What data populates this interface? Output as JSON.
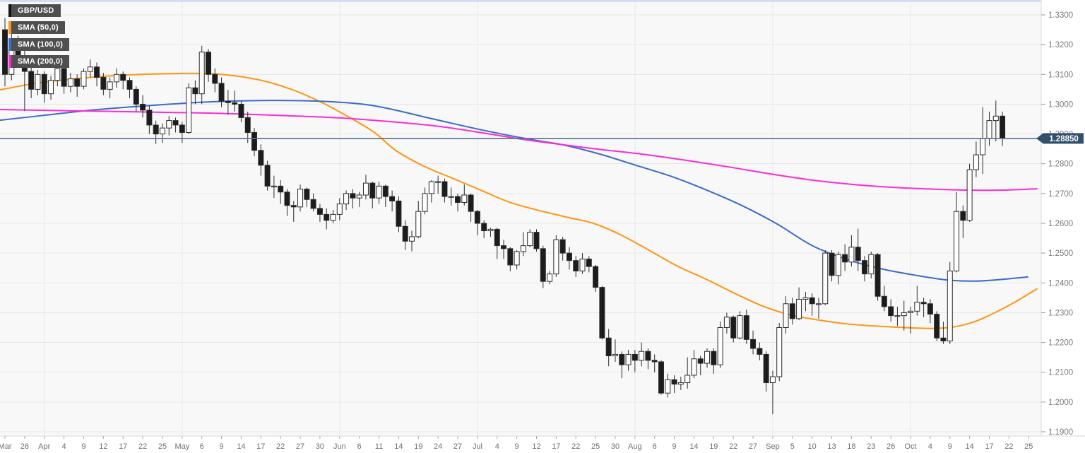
{
  "legend": {
    "symbol": "GBP/USD",
    "items": [
      {
        "label": "SMA (50,0)",
        "color": "#ff9514"
      },
      {
        "label": "SMA (100,0)",
        "color": "#3a6cc8"
      },
      {
        "label": "SMA (200,0)",
        "color": "#fb2bd3"
      }
    ]
  },
  "price_tag": {
    "value": "1.28850",
    "bg": "#31506e",
    "line_color": "#54708e"
  },
  "chart_data": {
    "type": "candlestick",
    "title": "GBP/USD daily candlestick chart with SMA(50), SMA(100), SMA(200) overlays",
    "last_price": 1.2885,
    "y_axis": {
      "min": 1.19,
      "max": 1.33,
      "tick_step": 0.01,
      "labels": [
        "1.3300",
        "1.3200",
        "1.3100",
        "1.3000",
        "1.2900",
        "1.2800",
        "1.2700",
        "1.2600",
        "1.2500",
        "1.2400",
        "1.2300",
        "1.2200",
        "1.2100",
        "1.2000",
        "1.1900"
      ]
    },
    "x_axis": {
      "tick_labels": [
        "Mar",
        "26",
        "Apr",
        "4",
        "9",
        "12",
        "17",
        "22",
        "25",
        "May",
        "6",
        "9",
        "14",
        "17",
        "22",
        "27",
        "30",
        "Jun",
        "6",
        "11",
        "14",
        "19",
        "24",
        "27",
        "Jul",
        "4",
        "9",
        "12",
        "17",
        "22",
        "25",
        "30",
        "Aug",
        "6",
        "9",
        "14",
        "19",
        "22",
        "27",
        "Sep",
        "5",
        "10",
        "13",
        "18",
        "23",
        "26",
        "Oct",
        "4",
        "9",
        "14",
        "17",
        "22",
        "25"
      ],
      "month_tick_indices": [
        2,
        9,
        17,
        24,
        32,
        39,
        46
      ],
      "candles_per_tick": 3
    },
    "candles": [
      [
        1.325,
        1.329,
        1.306,
        1.31
      ],
      [
        1.31,
        1.3255,
        1.308,
        1.321
      ],
      [
        1.321,
        1.323,
        1.313,
        1.316
      ],
      [
        1.316,
        1.3185,
        1.2977,
        1.311
      ],
      [
        1.311,
        1.313,
        1.302,
        1.305
      ],
      [
        1.305,
        1.3115,
        1.303,
        1.31
      ],
      [
        1.31,
        1.311,
        1.3005,
        1.3035
      ],
      [
        1.3035,
        1.3095,
        1.3015,
        1.308
      ],
      [
        1.308,
        1.316,
        1.306,
        1.312
      ],
      [
        1.312,
        1.3135,
        1.3035,
        1.306
      ],
      [
        1.306,
        1.3105,
        1.304,
        1.3085
      ],
      [
        1.3085,
        1.31,
        1.3025,
        1.306
      ],
      [
        1.306,
        1.312,
        1.305,
        1.311
      ],
      [
        1.311,
        1.315,
        1.309,
        1.3125
      ],
      [
        1.3125,
        1.314,
        1.306,
        1.309
      ],
      [
        1.309,
        1.3105,
        1.303,
        1.305
      ],
      [
        1.305,
        1.309,
        1.302,
        1.3075
      ],
      [
        1.3075,
        1.312,
        1.3055,
        1.31
      ],
      [
        1.31,
        1.311,
        1.305,
        1.308
      ],
      [
        1.308,
        1.309,
        1.302,
        1.305
      ],
      [
        1.305,
        1.306,
        1.2975,
        1.3
      ],
      [
        1.3,
        1.303,
        1.2955,
        1.298
      ],
      [
        1.298,
        1.2995,
        1.29,
        1.293
      ],
      [
        1.293,
        1.2945,
        1.2866,
        1.29
      ],
      [
        1.29,
        1.2935,
        1.287,
        1.292
      ],
      [
        1.292,
        1.296,
        1.2895,
        1.2945
      ],
      [
        1.2945,
        1.2955,
        1.2905,
        1.293
      ],
      [
        1.293,
        1.294,
        1.287,
        1.2905
      ],
      [
        1.2905,
        1.307,
        1.29,
        1.3055
      ],
      [
        1.3055,
        1.308,
        1.3,
        1.3035
      ],
      [
        1.3035,
        1.3196,
        1.3,
        1.3175
      ],
      [
        1.3175,
        1.3185,
        1.3075,
        1.31
      ],
      [
        1.31,
        1.312,
        1.304,
        1.307
      ],
      [
        1.307,
        1.309,
        1.299,
        1.301
      ],
      [
        1.301,
        1.3048,
        1.2965,
        1.3005
      ],
      [
        1.3005,
        1.3045,
        1.2975,
        1.3
      ],
      [
        1.3,
        1.301,
        1.294,
        1.2955
      ],
      [
        1.2955,
        1.2975,
        1.287,
        1.2905
      ],
      [
        1.2905,
        1.292,
        1.2825,
        1.2845
      ],
      [
        1.2845,
        1.2865,
        1.276,
        1.2795
      ],
      [
        1.2795,
        1.281,
        1.271,
        1.2725
      ],
      [
        1.2725,
        1.276,
        1.2685,
        1.2725
      ],
      [
        1.2725,
        1.2745,
        1.2665,
        1.2705
      ],
      [
        1.2705,
        1.2715,
        1.2625,
        1.266
      ],
      [
        1.266,
        1.2675,
        1.2605,
        1.2655
      ],
      [
        1.2655,
        1.273,
        1.264,
        1.2715
      ],
      [
        1.2715,
        1.272,
        1.2655,
        1.268
      ],
      [
        1.268,
        1.27,
        1.264,
        1.265
      ],
      [
        1.265,
        1.2665,
        1.2605,
        1.263
      ],
      [
        1.263,
        1.265,
        1.258,
        1.261
      ],
      [
        1.261,
        1.2645,
        1.26,
        1.263
      ],
      [
        1.263,
        1.2685,
        1.261,
        1.2665
      ],
      [
        1.2665,
        1.271,
        1.2645,
        1.27
      ],
      [
        1.27,
        1.2715,
        1.265,
        1.2685
      ],
      [
        1.2685,
        1.2705,
        1.2655,
        1.2695
      ],
      [
        1.2695,
        1.2763,
        1.268,
        1.2735
      ],
      [
        1.2735,
        1.274,
        1.265,
        1.2685
      ],
      [
        1.2685,
        1.274,
        1.2665,
        1.2725
      ],
      [
        1.2725,
        1.273,
        1.2655,
        1.269
      ],
      [
        1.269,
        1.271,
        1.264,
        1.2675
      ],
      [
        1.2675,
        1.269,
        1.257,
        1.259
      ],
      [
        1.259,
        1.261,
        1.251,
        1.254
      ],
      [
        1.254,
        1.2575,
        1.2506,
        1.2555
      ],
      [
        1.2555,
        1.2675,
        1.255,
        1.264
      ],
      [
        1.264,
        1.272,
        1.263,
        1.27
      ],
      [
        1.27,
        1.2745,
        1.267,
        1.274
      ],
      [
        1.274,
        1.276,
        1.27,
        1.274
      ],
      [
        1.274,
        1.275,
        1.267,
        1.269
      ],
      [
        1.269,
        1.272,
        1.266,
        1.269
      ],
      [
        1.269,
        1.27,
        1.264,
        1.267
      ],
      [
        1.267,
        1.273,
        1.266,
        1.2695
      ],
      [
        1.2695,
        1.27,
        1.2605,
        1.264
      ],
      [
        1.264,
        1.2645,
        1.256,
        1.26
      ],
      [
        1.26,
        1.261,
        1.255,
        1.2575
      ],
      [
        1.2575,
        1.2585,
        1.2555,
        1.258
      ],
      [
        1.258,
        1.2585,
        1.248,
        1.2525
      ],
      [
        1.2525,
        1.2545,
        1.248,
        1.2515
      ],
      [
        1.2515,
        1.252,
        1.2439,
        1.246
      ],
      [
        1.246,
        1.251,
        1.2445,
        1.2505
      ],
      [
        1.2505,
        1.257,
        1.249,
        1.2525
      ],
      [
        1.2525,
        1.258,
        1.252,
        1.257
      ],
      [
        1.257,
        1.258,
        1.2505,
        1.2515
      ],
      [
        1.2515,
        1.2525,
        1.2382,
        1.2405
      ],
      [
        1.2405,
        1.244,
        1.2395,
        1.243
      ],
      [
        1.243,
        1.256,
        1.242,
        1.2545
      ],
      [
        1.2545,
        1.2555,
        1.2475,
        1.25
      ],
      [
        1.25,
        1.252,
        1.2445,
        1.2475
      ],
      [
        1.2475,
        1.249,
        1.242,
        1.244
      ],
      [
        1.244,
        1.25,
        1.243,
        1.248
      ],
      [
        1.248,
        1.249,
        1.2435,
        1.2455
      ],
      [
        1.2455,
        1.246,
        1.237,
        1.2385
      ],
      [
        1.2385,
        1.239,
        1.221,
        1.2215
      ],
      [
        1.2215,
        1.2245,
        1.212,
        1.2155
      ],
      [
        1.2155,
        1.221,
        1.2135,
        1.216
      ],
      [
        1.216,
        1.217,
        1.208,
        1.2125
      ],
      [
        1.2125,
        1.2175,
        1.2105,
        1.216
      ],
      [
        1.216,
        1.2175,
        1.21,
        1.214
      ],
      [
        1.214,
        1.22,
        1.212,
        1.217
      ],
      [
        1.217,
        1.218,
        1.211,
        1.214
      ],
      [
        1.214,
        1.216,
        1.21,
        1.2135
      ],
      [
        1.2135,
        1.214,
        1.2025,
        1.203
      ],
      [
        1.203,
        1.2095,
        1.2015,
        1.2075
      ],
      [
        1.2075,
        1.209,
        1.203,
        1.206
      ],
      [
        1.206,
        1.2085,
        1.204,
        1.2065
      ],
      [
        1.2065,
        1.215,
        1.2045,
        1.209
      ],
      [
        1.209,
        1.2175,
        1.208,
        1.2145
      ],
      [
        1.2145,
        1.2155,
        1.209,
        1.213
      ],
      [
        1.213,
        1.218,
        1.2115,
        1.217
      ],
      [
        1.217,
        1.218,
        1.2095,
        1.2125
      ],
      [
        1.2125,
        1.227,
        1.2115,
        1.225
      ],
      [
        1.225,
        1.23,
        1.223,
        1.2285
      ],
      [
        1.2285,
        1.229,
        1.22,
        1.2215
      ],
      [
        1.2215,
        1.2305,
        1.221,
        1.229
      ],
      [
        1.229,
        1.231,
        1.2195,
        1.221
      ],
      [
        1.221,
        1.224,
        1.216,
        1.218
      ],
      [
        1.218,
        1.22,
        1.214,
        1.216
      ],
      [
        1.216,
        1.217,
        1.2035,
        1.2065
      ],
      [
        1.2065,
        1.2105,
        1.1959,
        1.2085
      ],
      [
        1.2085,
        1.2265,
        1.207,
        1.225
      ],
      [
        1.225,
        1.2355,
        1.223,
        1.233
      ],
      [
        1.233,
        1.235,
        1.226,
        1.228
      ],
      [
        1.228,
        1.2385,
        1.2275,
        1.2345
      ],
      [
        1.2345,
        1.237,
        1.2305,
        1.235
      ],
      [
        1.235,
        1.2365,
        1.229,
        1.233
      ],
      [
        1.233,
        1.235,
        1.228,
        1.233
      ],
      [
        1.233,
        1.251,
        1.2325,
        1.25
      ],
      [
        1.25,
        1.251,
        1.2405,
        1.2425
      ],
      [
        1.2425,
        1.2505,
        1.2395,
        1.2495
      ],
      [
        1.2495,
        1.253,
        1.244,
        1.247
      ],
      [
        1.247,
        1.256,
        1.2455,
        1.252
      ],
      [
        1.252,
        1.2582,
        1.244,
        1.2475
      ],
      [
        1.2475,
        1.249,
        1.2405,
        1.243
      ],
      [
        1.243,
        1.2505,
        1.2415,
        1.2495
      ],
      [
        1.2495,
        1.25,
        1.234,
        1.2355
      ],
      [
        1.2355,
        1.239,
        1.2305,
        1.232
      ],
      [
        1.232,
        1.2345,
        1.227,
        1.229
      ],
      [
        1.229,
        1.232,
        1.2255,
        1.229
      ],
      [
        1.229,
        1.234,
        1.224,
        1.23
      ],
      [
        1.23,
        1.232,
        1.223,
        1.2305
      ],
      [
        1.2305,
        1.239,
        1.229,
        1.2335
      ],
      [
        1.2335,
        1.235,
        1.2285,
        1.233
      ],
      [
        1.233,
        1.2345,
        1.2265,
        1.2295
      ],
      [
        1.2295,
        1.2305,
        1.2205,
        1.2215
      ],
      [
        1.2215,
        1.227,
        1.2195,
        1.2205
      ],
      [
        1.2205,
        1.247,
        1.2195,
        1.244
      ],
      [
        1.244,
        1.2705,
        1.2435,
        1.264
      ],
      [
        1.264,
        1.266,
        1.255,
        1.261
      ],
      [
        1.261,
        1.28,
        1.2605,
        1.278
      ],
      [
        1.278,
        1.2875,
        1.2755,
        1.283
      ],
      [
        1.283,
        1.299,
        1.2765,
        1.2885
      ],
      [
        1.2885,
        1.2975,
        1.286,
        1.2945
      ],
      [
        1.2945,
        1.3012,
        1.2875,
        1.296
      ],
      [
        1.296,
        1.2975,
        1.286,
        1.2885
      ]
    ],
    "sma": [
      {
        "name": "SMA (50,0)",
        "color": "#ff9514",
        "points": [
          [
            0,
            1.3048
          ],
          [
            50,
            1.307
          ],
          [
            100,
            1.3084
          ],
          [
            150,
            1.3094
          ],
          [
            200,
            1.31
          ],
          [
            250,
            1.3103
          ],
          [
            290,
            1.3103
          ],
          [
            330,
            1.3096
          ],
          [
            370,
            1.308
          ],
          [
            410,
            1.3052
          ],
          [
            450,
            1.3012
          ],
          [
            490,
            1.2962
          ],
          [
            530,
            1.2905
          ],
          [
            560,
            1.2845
          ],
          [
            600,
            1.2792
          ],
          [
            640,
            1.2752
          ],
          [
            680,
            1.2712
          ],
          [
            720,
            1.2672
          ],
          [
            760,
            1.2645
          ],
          [
            800,
            1.2622
          ],
          [
            840,
            1.26
          ],
          [
            880,
            1.256
          ],
          [
            920,
            1.2508
          ],
          [
            960,
            1.2455
          ],
          [
            1000,
            1.2412
          ],
          [
            1040,
            1.2365
          ],
          [
            1080,
            1.2322
          ],
          [
            1120,
            1.2292
          ],
          [
            1160,
            1.2275
          ],
          [
            1200,
            1.2262
          ],
          [
            1240,
            1.2255
          ],
          [
            1280,
            1.225
          ],
          [
            1320,
            1.2247
          ],
          [
            1350,
            1.2252
          ],
          [
            1380,
            1.227
          ],
          [
            1410,
            1.2302
          ],
          [
            1440,
            1.234
          ],
          [
            1468,
            1.238
          ]
        ]
      },
      {
        "name": "SMA (100,0)",
        "color": "#3a6cc8",
        "points": [
          [
            0,
            1.2946
          ],
          [
            60,
            1.2962
          ],
          [
            120,
            1.2978
          ],
          [
            180,
            1.299
          ],
          [
            240,
            1.3
          ],
          [
            300,
            1.3008
          ],
          [
            360,
            1.3012
          ],
          [
            420,
            1.3012
          ],
          [
            470,
            1.3008
          ],
          [
            520,
            1.2998
          ],
          [
            560,
            1.298
          ],
          [
            610,
            1.2952
          ],
          [
            660,
            1.2925
          ],
          [
            710,
            1.29
          ],
          [
            760,
            1.2878
          ],
          [
            800,
            1.2862
          ],
          [
            850,
            1.2832
          ],
          [
            900,
            1.2795
          ],
          [
            950,
            1.2758
          ],
          [
            1000,
            1.2712
          ],
          [
            1050,
            1.266
          ],
          [
            1100,
            1.2598
          ],
          [
            1150,
            1.2525
          ],
          [
            1200,
            1.2478
          ],
          [
            1250,
            1.2446
          ],
          [
            1300,
            1.2424
          ],
          [
            1340,
            1.241
          ],
          [
            1380,
            1.2406
          ],
          [
            1420,
            1.2412
          ],
          [
            1455,
            1.242
          ]
        ]
      },
      {
        "name": "SMA (200,0)",
        "color": "#fb2bd3",
        "points": [
          [
            0,
            1.2982
          ],
          [
            100,
            1.2978
          ],
          [
            200,
            1.2974
          ],
          [
            300,
            1.297
          ],
          [
            400,
            1.2962
          ],
          [
            480,
            1.2954
          ],
          [
            560,
            1.294
          ],
          [
            620,
            1.2926
          ],
          [
            680,
            1.2905
          ],
          [
            740,
            1.2882
          ],
          [
            790,
            1.2866
          ],
          [
            850,
            1.2848
          ],
          [
            910,
            1.2832
          ],
          [
            970,
            1.2812
          ],
          [
            1030,
            1.279
          ],
          [
            1090,
            1.2766
          ],
          [
            1150,
            1.2745
          ],
          [
            1210,
            1.273
          ],
          [
            1270,
            1.272
          ],
          [
            1330,
            1.2714
          ],
          [
            1390,
            1.2711
          ],
          [
            1430,
            1.2712
          ],
          [
            1468,
            1.2716
          ]
        ]
      }
    ]
  }
}
